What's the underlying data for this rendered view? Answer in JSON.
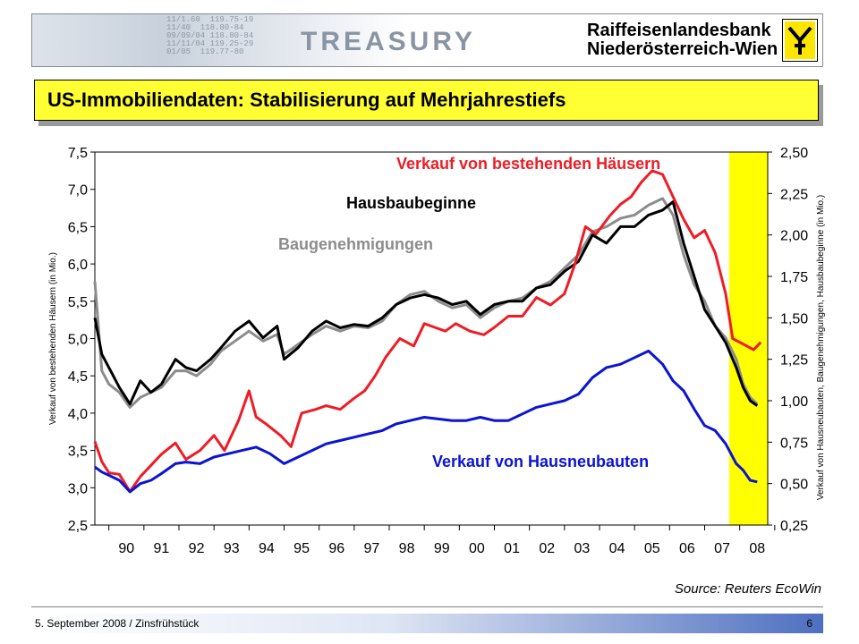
{
  "header": {
    "brand_word": "TREASURY",
    "bank_name_line1": "Raiffeisenlandesbank",
    "bank_name_line2": "Niederösterreich-Wien",
    "ticker_lines": [
      "11/1.60  119.75-19",
      "11/40  118.80-84",
      "09/09/04 118.80-84",
      "11/11/04 119.25-29",
      "01/05  119.77-80"
    ]
  },
  "title": "US-Immobiliendaten: Stabilisierung auf Mehrjahrestiefs",
  "footer": {
    "left": "5. September 2008 / Zinsfrühstück",
    "page": "6"
  },
  "source": "Source: Reuters EcoWin",
  "colors": {
    "title_bg": "#ffff33",
    "highlight": "#ffff00",
    "red": "#ee1c25",
    "black": "#000000",
    "gray": "#8c8c8c",
    "blue": "#0a14d2"
  },
  "chart_data": {
    "type": "line",
    "x_ticks": [
      "90",
      "91",
      "92",
      "93",
      "94",
      "95",
      "96",
      "97",
      "98",
      "99",
      "00",
      "01",
      "02",
      "03",
      "04",
      "05",
      "06",
      "07",
      "08"
    ],
    "y_left": {
      "label": "Verkauf von bestehenden Häusern (in Mio.)",
      "range": [
        2.5,
        7.5
      ],
      "ticks": [
        "2,5",
        "3,0",
        "3,5",
        "4,0",
        "4,5",
        "5,0",
        "5,5",
        "6,0",
        "6,5",
        "7,0",
        "7,5"
      ]
    },
    "y_right": {
      "label": "Verkauf von Hausneubauten, Baugenehmigungen, Hausbaubeginne (in Mio.)",
      "range": [
        0.25,
        2.5
      ],
      "ticks": [
        "0,25",
        "0,50",
        "0,75",
        "1,00",
        "1,25",
        "1,50",
        "1,75",
        "2,00",
        "2,25",
        "2,50"
      ]
    },
    "x_range": [
      1989.6,
      2008.8
    ],
    "highlight_period": [
      2007.7,
      2008.8
    ],
    "grid": false,
    "series": [
      {
        "name": "Verkauf von bestehenden Häusern",
        "axis": "left",
        "color": "#ee1c25",
        "x": [
          1989.6,
          1989.8,
          1990.0,
          1990.3,
          1990.6,
          1990.9,
          1991.2,
          1991.5,
          1991.9,
          1992.2,
          1992.6,
          1993.0,
          1993.3,
          1993.7,
          1994.0,
          1994.2,
          1994.5,
          1994.9,
          1995.2,
          1995.5,
          1995.9,
          1996.2,
          1996.6,
          1997.0,
          1997.3,
          1997.6,
          1997.9,
          1998.3,
          1998.7,
          1999.0,
          1999.3,
          1999.6,
          1999.9,
          2000.3,
          2000.7,
          2001.0,
          2001.4,
          2001.8,
          2002.2,
          2002.6,
          2003.0,
          2003.3,
          2003.6,
          2003.9,
          2004.3,
          2004.6,
          2004.9,
          2005.2,
          2005.5,
          2005.8,
          2006.1,
          2006.4,
          2006.7,
          2007.0,
          2007.3,
          2007.6,
          2007.8,
          2008.0,
          2008.2,
          2008.4,
          2008.6
        ],
        "values": [
          3.62,
          3.35,
          3.2,
          3.18,
          2.95,
          3.15,
          3.3,
          3.45,
          3.6,
          3.38,
          3.5,
          3.7,
          3.5,
          3.9,
          4.3,
          3.95,
          3.85,
          3.7,
          3.55,
          4.0,
          4.05,
          4.1,
          4.05,
          4.2,
          4.3,
          4.5,
          4.75,
          5.0,
          4.9,
          5.2,
          5.15,
          5.1,
          5.2,
          5.1,
          5.05,
          5.15,
          5.3,
          5.3,
          5.55,
          5.45,
          5.6,
          6.0,
          6.5,
          6.4,
          6.65,
          6.8,
          6.9,
          7.1,
          7.25,
          7.2,
          6.9,
          6.6,
          6.35,
          6.45,
          6.15,
          5.6,
          5.0,
          4.95,
          4.9,
          4.85,
          4.95
        ]
      },
      {
        "name": "Hausbaubeginne",
        "axis": "right",
        "color": "#000000",
        "x": [
          1989.6,
          1989.8,
          1990.0,
          1990.3,
          1990.6,
          1990.9,
          1991.2,
          1991.5,
          1991.9,
          1992.2,
          1992.5,
          1992.9,
          1993.2,
          1993.6,
          1994.0,
          1994.4,
          1994.8,
          1995.0,
          1995.4,
          1995.8,
          1996.2,
          1996.6,
          1997.0,
          1997.4,
          1997.8,
          1998.2,
          1998.6,
          1999.0,
          1999.4,
          1999.8,
          2000.2,
          2000.6,
          2001.0,
          2001.4,
          2001.8,
          2002.2,
          2002.6,
          2003.0,
          2003.4,
          2003.8,
          2004.2,
          2004.6,
          2005.0,
          2005.4,
          2005.8,
          2006.1,
          2006.4,
          2006.7,
          2007.0,
          2007.3,
          2007.6,
          2007.9,
          2008.1,
          2008.3,
          2008.5
        ],
        "values": [
          1.5,
          1.28,
          1.2,
          1.08,
          0.98,
          1.12,
          1.05,
          1.1,
          1.25,
          1.2,
          1.18,
          1.25,
          1.32,
          1.42,
          1.48,
          1.38,
          1.45,
          1.25,
          1.32,
          1.42,
          1.48,
          1.44,
          1.46,
          1.45,
          1.5,
          1.58,
          1.62,
          1.64,
          1.62,
          1.58,
          1.6,
          1.52,
          1.58,
          1.6,
          1.6,
          1.68,
          1.7,
          1.78,
          1.84,
          2.0,
          1.95,
          2.05,
          2.05,
          2.12,
          2.15,
          2.2,
          1.95,
          1.75,
          1.55,
          1.45,
          1.35,
          1.2,
          1.08,
          1.0,
          0.97
        ]
      },
      {
        "name": "Baugenehmigungen",
        "axis": "right",
        "color": "#8c8c8c",
        "x": [
          1989.6,
          1989.8,
          1990.0,
          1990.3,
          1990.6,
          1990.9,
          1991.2,
          1991.5,
          1991.9,
          1992.2,
          1992.5,
          1992.9,
          1993.2,
          1993.6,
          1994.0,
          1994.4,
          1994.8,
          1995.0,
          1995.4,
          1995.8,
          1996.2,
          1996.6,
          1997.0,
          1997.4,
          1997.8,
          1998.2,
          1998.6,
          1999.0,
          1999.4,
          1999.8,
          2000.2,
          2000.6,
          2001.0,
          2001.4,
          2001.8,
          2002.2,
          2002.6,
          2003.0,
          2003.4,
          2003.8,
          2004.2,
          2004.6,
          2005.0,
          2005.4,
          2005.8,
          2006.1,
          2006.4,
          2006.7,
          2007.0,
          2007.3,
          2007.6,
          2007.9,
          2008.1,
          2008.3,
          2008.5
        ],
        "values": [
          1.72,
          1.18,
          1.1,
          1.05,
          0.96,
          1.02,
          1.05,
          1.08,
          1.18,
          1.18,
          1.15,
          1.22,
          1.3,
          1.36,
          1.42,
          1.36,
          1.4,
          1.28,
          1.34,
          1.4,
          1.45,
          1.42,
          1.45,
          1.44,
          1.48,
          1.58,
          1.64,
          1.66,
          1.6,
          1.56,
          1.58,
          1.5,
          1.56,
          1.6,
          1.62,
          1.68,
          1.72,
          1.8,
          1.88,
          2.02,
          2.05,
          2.1,
          2.12,
          2.18,
          2.22,
          2.12,
          1.88,
          1.7,
          1.6,
          1.45,
          1.38,
          1.25,
          1.1,
          1.02,
          0.98
        ]
      },
      {
        "name": "Verkauf von Hausneubauten",
        "axis": "right",
        "color": "#0a14d2",
        "x": [
          1989.6,
          1989.8,
          1990.0,
          1990.3,
          1990.6,
          1990.9,
          1991.2,
          1991.5,
          1991.9,
          1992.2,
          1992.6,
          1993.0,
          1993.4,
          1993.8,
          1994.2,
          1994.6,
          1995.0,
          1995.4,
          1995.8,
          1996.2,
          1996.6,
          1997.0,
          1997.4,
          1997.8,
          1998.2,
          1998.6,
          1999.0,
          1999.4,
          1999.8,
          2000.2,
          2000.6,
          2001.0,
          2001.4,
          2001.8,
          2002.2,
          2002.6,
          2003.0,
          2003.4,
          2003.8,
          2004.2,
          2004.6,
          2005.0,
          2005.4,
          2005.8,
          2006.1,
          2006.4,
          2006.7,
          2007.0,
          2007.3,
          2007.6,
          2007.9,
          2008.1,
          2008.3,
          2008.5
        ],
        "values": [
          0.6,
          0.57,
          0.55,
          0.52,
          0.45,
          0.5,
          0.52,
          0.56,
          0.62,
          0.63,
          0.62,
          0.66,
          0.68,
          0.7,
          0.72,
          0.68,
          0.62,
          0.66,
          0.7,
          0.74,
          0.76,
          0.78,
          0.8,
          0.82,
          0.86,
          0.88,
          0.9,
          0.89,
          0.88,
          0.88,
          0.9,
          0.88,
          0.88,
          0.92,
          0.96,
          0.98,
          1.0,
          1.04,
          1.14,
          1.2,
          1.22,
          1.26,
          1.3,
          1.22,
          1.12,
          1.06,
          0.95,
          0.85,
          0.82,
          0.74,
          0.62,
          0.58,
          0.52,
          0.51
        ]
      }
    ],
    "annotations": [
      {
        "text": "Verkauf von bestehenden Häusern",
        "color": "#ee1c25"
      },
      {
        "text": "Hausbaubeginne",
        "color": "#000000"
      },
      {
        "text": "Baugenehmigungen",
        "color": "#8c8c8c"
      },
      {
        "text": "Verkauf von Hausneubauten",
        "color": "#0a14d2"
      }
    ]
  }
}
